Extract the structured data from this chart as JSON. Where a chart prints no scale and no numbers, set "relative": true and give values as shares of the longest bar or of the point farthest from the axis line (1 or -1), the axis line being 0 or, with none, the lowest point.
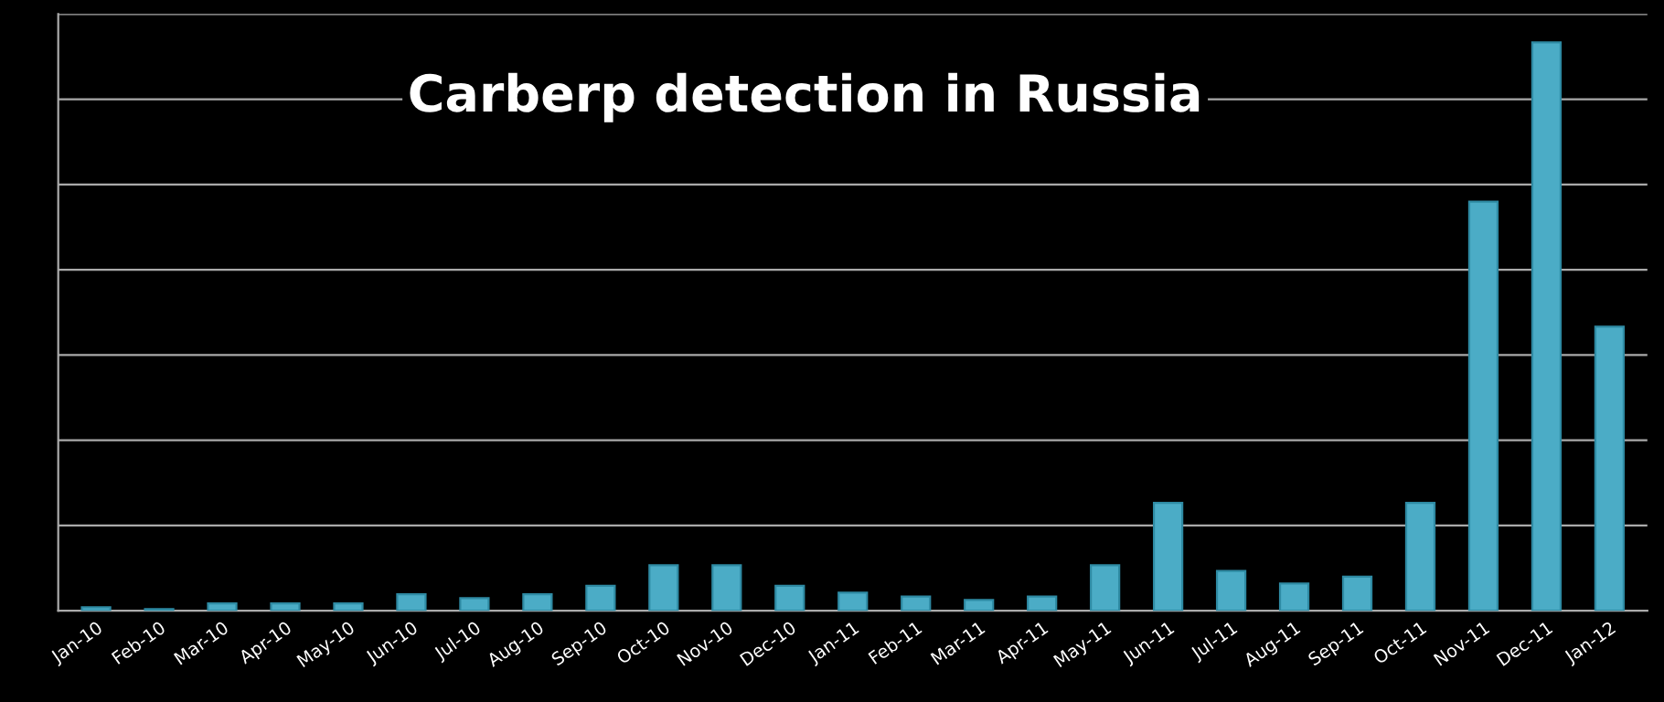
{
  "chart_data": {
    "type": "bar",
    "title": "Carberp detection in Russia",
    "categories": [
      "Jan-10",
      "Feb-10",
      "Mar-10",
      "Apr-10",
      "May-10",
      "Jun-10",
      "Jul-10",
      "Aug-10",
      "Sep-10",
      "Oct-10",
      "Nov-10",
      "Dec-10",
      "Jan-11",
      "Feb-11",
      "Mar-11",
      "Apr-11",
      "May-11",
      "Jun-11",
      "Jul-11",
      "Aug-11",
      "Sep-11",
      "Oct-11",
      "Nov-11",
      "Dec-11",
      "Jan-12"
    ],
    "values": [
      0.006,
      0.003,
      0.013,
      0.013,
      0.013,
      0.029,
      0.022,
      0.029,
      0.044,
      0.08,
      0.08,
      0.044,
      0.032,
      0.025,
      0.019,
      0.025,
      0.08,
      0.19,
      0.07,
      0.048,
      0.06,
      0.19,
      0.72,
      1,
      0.5
    ],
    "color": "#4bacc6",
    "relative": true,
    "grid": "y"
  }
}
